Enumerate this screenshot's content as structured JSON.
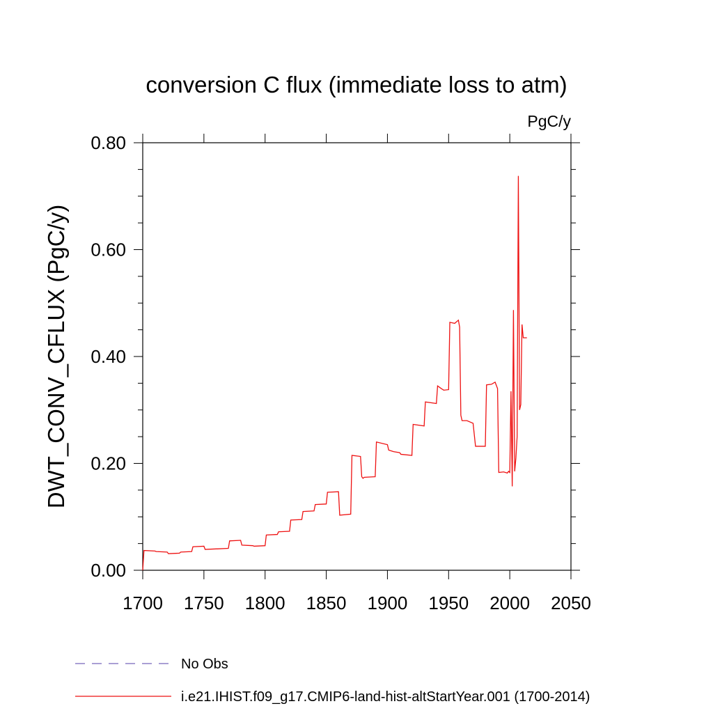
{
  "chart_data": {
    "type": "line",
    "title": "conversion C flux (immediate loss to atm)",
    "units": "PgC/y",
    "ylabel": "DWT_CONV_CFLUX  (PgC/y)",
    "xlabel": "",
    "xlim": [
      1700,
      2050
    ],
    "ylim": [
      0,
      0.8
    ],
    "x_ticks": [
      1700,
      1750,
      1800,
      1850,
      1900,
      1950,
      2000,
      2050
    ],
    "x_tick_labels": [
      "1700",
      "1750",
      "1800",
      "1850",
      "1900",
      "1950",
      "2000",
      "2050"
    ],
    "y_ticks": [
      0,
      0.2,
      0.4,
      0.6,
      0.8
    ],
    "y_tick_labels": [
      "0.00",
      "0.20",
      "0.40",
      "0.60",
      "0.80"
    ],
    "legend_position": "bottom-left",
    "series": [
      {
        "name": "No Obs",
        "color": "#7766bb",
        "dash": "dashed",
        "x": [],
        "y": []
      },
      {
        "name": "i.e21.IHIST.f09_g17.CMIP6-land-hist-altStartYear.001 (1700-2014)",
        "color": "#ee1111",
        "dash": "solid",
        "x": [
          1700,
          1701,
          1710,
          1711,
          1720,
          1721,
          1730,
          1731,
          1740,
          1741,
          1750,
          1751,
          1760,
          1761,
          1770,
          1771,
          1780,
          1781,
          1790,
          1791,
          1800,
          1801,
          1810,
          1811,
          1820,
          1821,
          1830,
          1831,
          1840,
          1841,
          1850,
          1851,
          1860,
          1861,
          1870,
          1871,
          1878,
          1879,
          1880,
          1881,
          1890,
          1891,
          1900,
          1901,
          1905,
          1910,
          1911,
          1920,
          1921,
          1930,
          1931,
          1940,
          1941,
          1944,
          1946,
          1950,
          1951,
          1955,
          1958,
          1959,
          1960,
          1961,
          1965,
          1970,
          1972,
          1980,
          1981,
          1985,
          1988,
          1990,
          1991,
          1995,
          1998,
          1999,
          2000,
          2001,
          2002,
          2003,
          2004,
          2005,
          2006,
          2007,
          2008,
          2009,
          2010,
          2011,
          2012,
          2013,
          2014
        ],
        "y": [
          0.0,
          0.037,
          0.036,
          0.035,
          0.034,
          0.031,
          0.032,
          0.034,
          0.035,
          0.044,
          0.045,
          0.039,
          0.04,
          0.04,
          0.041,
          0.055,
          0.056,
          0.047,
          0.046,
          0.045,
          0.046,
          0.066,
          0.067,
          0.072,
          0.073,
          0.094,
          0.095,
          0.11,
          0.111,
          0.123,
          0.124,
          0.146,
          0.147,
          0.103,
          0.105,
          0.215,
          0.213,
          0.175,
          0.172,
          0.174,
          0.175,
          0.24,
          0.235,
          0.225,
          0.222,
          0.22,
          0.217,
          0.215,
          0.273,
          0.27,
          0.315,
          0.312,
          0.345,
          0.34,
          0.337,
          0.338,
          0.464,
          0.462,
          0.468,
          0.455,
          0.29,
          0.28,
          0.28,
          0.275,
          0.232,
          0.232,
          0.347,
          0.348,
          0.352,
          0.34,
          0.183,
          0.184,
          0.182,
          0.185,
          0.183,
          0.335,
          0.157,
          0.487,
          0.185,
          0.21,
          0.25,
          0.738,
          0.3,
          0.31,
          0.46,
          0.435,
          0.435,
          0.435,
          0.435
        ]
      }
    ]
  }
}
